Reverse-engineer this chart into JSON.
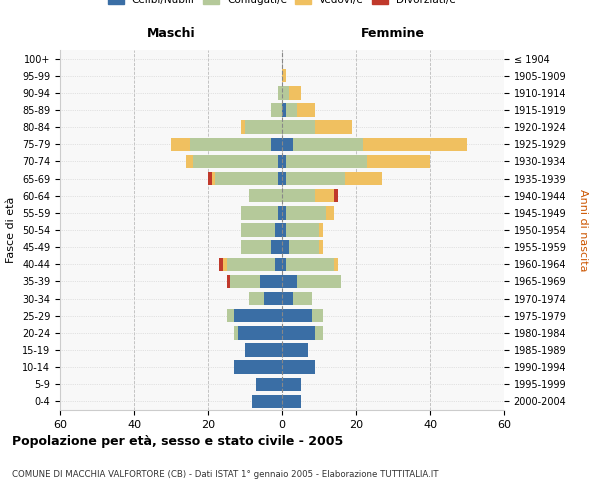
{
  "age_groups": [
    "0-4",
    "5-9",
    "10-14",
    "15-19",
    "20-24",
    "25-29",
    "30-34",
    "35-39",
    "40-44",
    "45-49",
    "50-54",
    "55-59",
    "60-64",
    "65-69",
    "70-74",
    "75-79",
    "80-84",
    "85-89",
    "90-94",
    "95-99",
    "100+"
  ],
  "birth_years": [
    "2000-2004",
    "1995-1999",
    "1990-1994",
    "1985-1989",
    "1980-1984",
    "1975-1979",
    "1970-1974",
    "1965-1969",
    "1960-1964",
    "1955-1959",
    "1950-1954",
    "1945-1949",
    "1940-1944",
    "1935-1939",
    "1930-1934",
    "1925-1929",
    "1920-1924",
    "1915-1919",
    "1910-1914",
    "1905-1909",
    "≤ 1904"
  ],
  "maschi": {
    "celibi": [
      8,
      7,
      13,
      10,
      12,
      13,
      5,
      6,
      2,
      3,
      2,
      1,
      0,
      1,
      1,
      3,
      0,
      0,
      0,
      0,
      0
    ],
    "coniugati": [
      0,
      0,
      0,
      0,
      1,
      2,
      4,
      8,
      13,
      8,
      9,
      10,
      9,
      17,
      23,
      22,
      10,
      3,
      1,
      0,
      0
    ],
    "vedovi": [
      0,
      0,
      0,
      0,
      0,
      0,
      0,
      0,
      1,
      0,
      0,
      0,
      0,
      1,
      2,
      5,
      1,
      0,
      0,
      0,
      0
    ],
    "divorziati": [
      0,
      0,
      0,
      0,
      0,
      0,
      0,
      1,
      1,
      0,
      0,
      0,
      0,
      1,
      0,
      0,
      0,
      0,
      0,
      0,
      0
    ]
  },
  "femmine": {
    "nubili": [
      5,
      5,
      9,
      7,
      9,
      8,
      3,
      4,
      1,
      2,
      1,
      1,
      0,
      1,
      1,
      3,
      0,
      1,
      0,
      0,
      0
    ],
    "coniugate": [
      0,
      0,
      0,
      0,
      2,
      3,
      5,
      12,
      13,
      8,
      9,
      11,
      9,
      16,
      22,
      19,
      9,
      3,
      2,
      0,
      0
    ],
    "vedove": [
      0,
      0,
      0,
      0,
      0,
      0,
      0,
      0,
      1,
      1,
      1,
      2,
      5,
      10,
      17,
      28,
      10,
      5,
      3,
      1,
      0
    ],
    "divorziate": [
      0,
      0,
      0,
      0,
      0,
      0,
      0,
      0,
      0,
      0,
      0,
      0,
      1,
      0,
      0,
      0,
      0,
      0,
      0,
      0,
      0
    ]
  },
  "colors": {
    "celibi": "#3a6ea5",
    "coniugati": "#b5c99a",
    "vedovi": "#f0c060",
    "divorziati": "#c0392b"
  },
  "xlim": 60,
  "title": "Popolazione per età, sesso e stato civile - 2005",
  "subtitle": "COMUNE DI MACCHIA VALFORTORE (CB) - Dati ISTAT 1° gennaio 2005 - Elaborazione TUTTITALIA.IT",
  "ylabel_left": "Fasce di età",
  "ylabel_right": "Anni di nascita",
  "xlabel_left": "Maschi",
  "xlabel_right": "Femmine"
}
